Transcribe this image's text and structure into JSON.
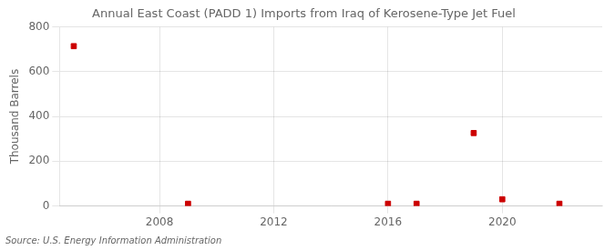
{
  "chart_data": {
    "type": "scatter",
    "title": "Annual East Coast (PADD 1) Imports from Iraq of Kerosene-Type Jet Fuel",
    "ylabel": "Thousand Barrels",
    "annotations": [
      "Source: U.S. Energy Information Administration"
    ],
    "x": [
      2005,
      2009,
      2016,
      2017,
      2019,
      2020,
      2022
    ],
    "values": [
      714,
      10,
      10,
      10,
      326,
      30,
      10
    ],
    "color": "#cc0000",
    "marker": "square",
    "xlim": [
      2004.5,
      2023.5
    ],
    "ylim": [
      0,
      800
    ],
    "xticks": [
      2008,
      2012,
      2016,
      2020
    ],
    "yticks": [
      0,
      200,
      400,
      600,
      800
    ],
    "grid": true
  }
}
